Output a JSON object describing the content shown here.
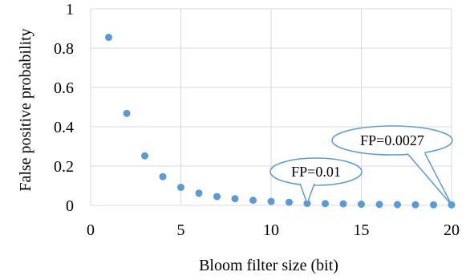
{
  "chart_data": {
    "type": "scatter",
    "title": "",
    "xlabel": "Bloom filter size (bit)",
    "ylabel": "False positive probability",
    "xlim": [
      0,
      20
    ],
    "ylim": [
      0,
      1
    ],
    "x_ticks": [
      0,
      5,
      10,
      15,
      20
    ],
    "y_ticks": [
      0,
      0.2,
      0.4,
      0.6,
      0.8,
      1
    ],
    "grid": true,
    "legend": "none",
    "marker_color": "#5b9bd5",
    "series": [
      {
        "x": [
          1,
          2,
          3,
          4,
          5,
          6,
          7,
          8,
          9,
          10,
          11,
          12,
          13,
          14,
          15,
          16,
          17,
          18,
          19,
          20
        ],
        "y": [
          0.855,
          0.468,
          0.252,
          0.146,
          0.092,
          0.062,
          0.045,
          0.034,
          0.026,
          0.02,
          0.016,
          0.01,
          0.009,
          0.008,
          0.006,
          0.005,
          0.004,
          0.0035,
          0.003,
          0.0027
        ]
      }
    ],
    "annotations": [
      {
        "text": "FP=0.01",
        "x": 12,
        "y": 0.01
      },
      {
        "text": "FP=0.0027",
        "x": 20,
        "y": 0.0027
      }
    ]
  }
}
